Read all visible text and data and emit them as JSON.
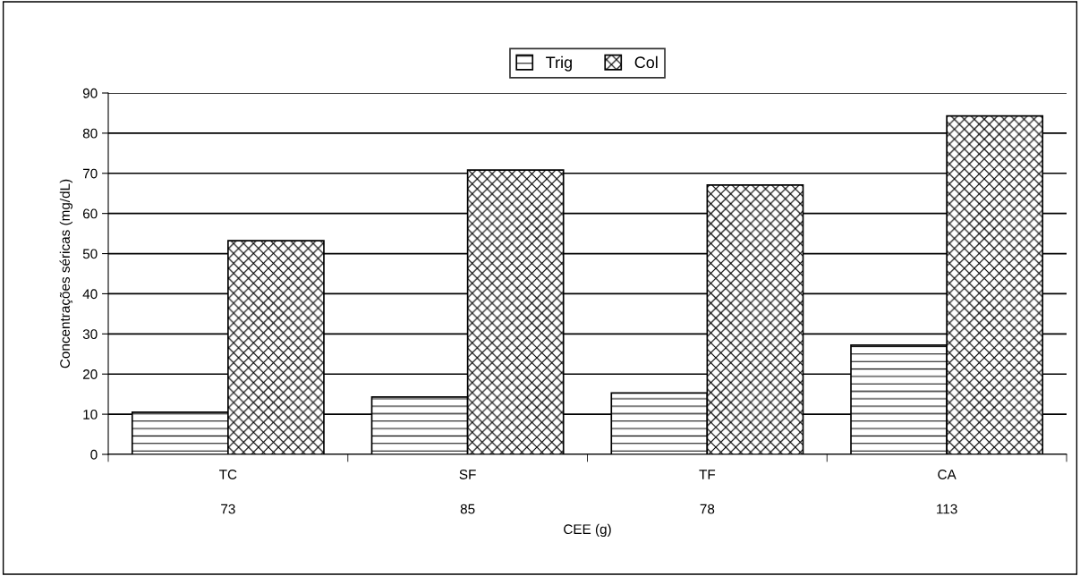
{
  "chart_data": {
    "type": "bar",
    "xlabel": "CEE (g)",
    "ylabel": "Concentrações séricas (mg/dL)",
    "categories": [
      "TC\n73",
      "SF\n85",
      "TF\n78",
      "CA\n113"
    ],
    "series": [
      {
        "name": "Trig",
        "color": "#000000",
        "values": [
          10.5,
          14.3,
          15.3,
          27.2
        ]
      },
      {
        "name": "Col",
        "color": "#000000",
        "values": [
          53.2,
          70.8,
          67.1,
          84.3
        ]
      }
    ],
    "ylim": [
      0,
      90
    ],
    "yticks": [
      0,
      10,
      20,
      30,
      40,
      50,
      60,
      70,
      80,
      90
    ],
    "grid": "y",
    "legend": "top"
  }
}
